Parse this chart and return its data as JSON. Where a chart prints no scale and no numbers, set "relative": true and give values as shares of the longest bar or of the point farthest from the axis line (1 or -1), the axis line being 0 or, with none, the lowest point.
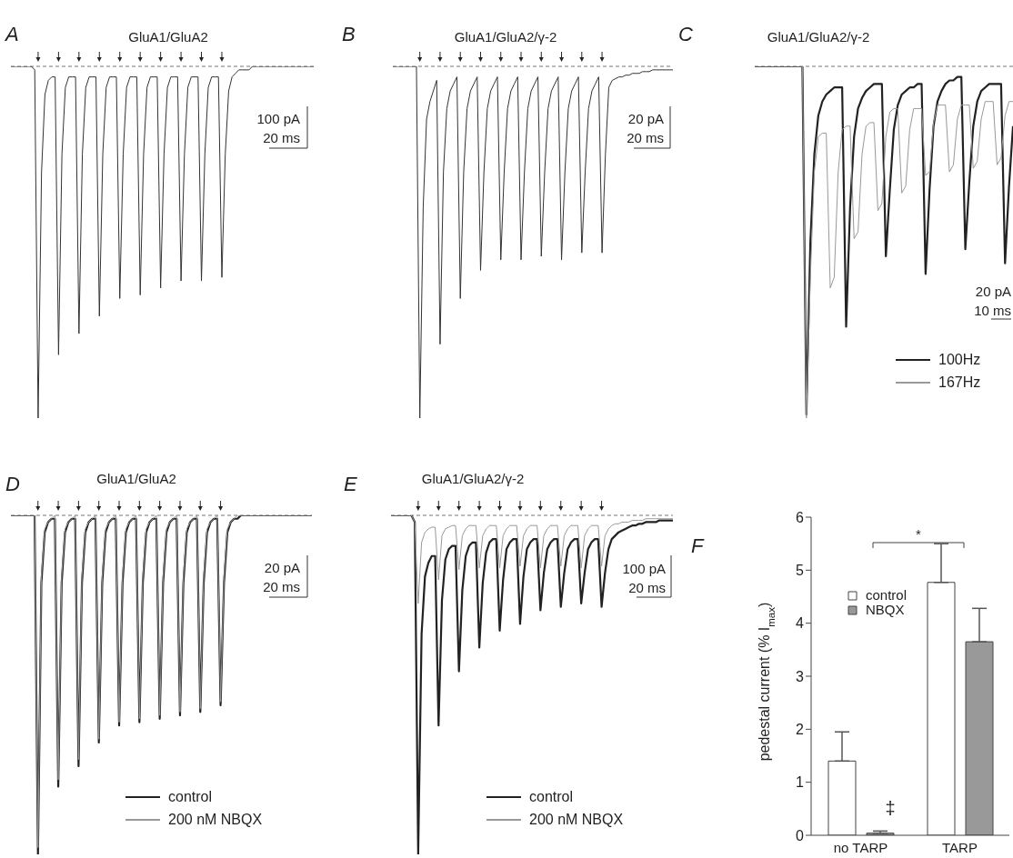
{
  "chart_data": [
    {
      "type": "line",
      "relative": true,
      "title": "GluA1/GluA2",
      "annotations": [
        "A",
        "100 pA",
        "20 ms"
      ],
      "ref_lines": [
        {
          "axis": "y",
          "value": 0,
          "line_style": "dashed",
          "color": "#777777"
        }
      ],
      "categories": [
        null,
        null,
        null,
        null,
        null,
        null,
        null,
        null,
        null,
        null,
        null,
        null,
        null,
        null,
        null,
        null,
        null,
        null,
        null,
        null,
        null,
        null,
        null,
        null,
        null,
        null,
        null,
        null,
        null,
        null,
        null,
        null,
        null,
        null,
        null,
        null,
        null,
        null,
        null,
        null,
        null,
        null,
        null,
        null,
        null,
        null,
        null,
        null,
        null,
        null,
        null,
        null,
        null,
        null,
        null,
        null,
        null,
        null,
        null,
        null,
        null,
        null,
        null,
        null,
        null,
        null,
        null,
        null,
        null,
        null,
        null,
        null,
        null,
        null,
        null,
        null,
        null,
        null,
        null,
        null,
        null,
        null,
        null,
        null,
        null,
        null,
        null,
        null,
        null,
        null
      ],
      "series": [
        {
          "color": "#333333",
          "values": [
            0,
            0,
            0,
            0,
            0,
            0,
            0,
            -0.01,
            -1,
            -0.3,
            -0.08,
            -0.04,
            -0.03,
            -0.03,
            -0.82,
            -0.25,
            -0.06,
            -0.03,
            -0.03,
            -0.03,
            -0.76,
            -0.25,
            -0.06,
            -0.03,
            -0.03,
            -0.03,
            -0.71,
            -0.25,
            -0.06,
            -0.03,
            -0.03,
            -0.03,
            -0.66,
            -0.25,
            -0.06,
            -0.03,
            -0.03,
            -0.03,
            -0.65,
            -0.25,
            -0.06,
            -0.03,
            -0.03,
            -0.03,
            -0.63,
            -0.25,
            -0.06,
            -0.03,
            -0.03,
            -0.03,
            -0.61,
            -0.25,
            -0.06,
            -0.03,
            -0.03,
            -0.03,
            -0.61,
            -0.25,
            -0.06,
            -0.03,
            -0.03,
            -0.03,
            -0.6,
            -0.25,
            -0.07,
            -0.03,
            -0.02,
            -0.01,
            -0.01,
            -0.01,
            -0.01,
            0,
            0,
            0,
            0,
            0,
            0,
            0,
            0,
            0,
            0,
            0,
            0,
            0,
            0,
            0,
            0,
            0,
            0,
            0
          ]
        }
      ]
    },
    {
      "type": "line",
      "relative": true,
      "title": "GluA1/GluA2/γ-2",
      "annotations": [
        "B",
        "20 pA",
        "20 ms"
      ],
      "ref_lines": [
        {
          "axis": "y",
          "value": 0,
          "line_style": "dashed",
          "color": "#777777"
        }
      ],
      "categories": [
        null,
        null,
        null,
        null,
        null,
        null,
        null,
        null,
        null,
        null,
        null,
        null,
        null,
        null,
        null,
        null,
        null,
        null,
        null,
        null,
        null,
        null,
        null,
        null,
        null,
        null,
        null,
        null,
        null,
        null,
        null,
        null,
        null,
        null,
        null,
        null,
        null,
        null,
        null,
        null,
        null,
        null,
        null,
        null,
        null,
        null,
        null,
        null,
        null,
        null,
        null,
        null,
        null,
        null,
        null,
        null,
        null,
        null,
        null,
        null,
        null,
        null,
        null,
        null,
        null,
        null,
        null,
        null,
        null,
        null,
        null,
        null,
        null,
        null,
        null,
        null,
        null,
        null,
        null,
        null,
        null,
        null,
        null,
        null
      ],
      "series": [
        {
          "color": "#333333",
          "values": [
            0,
            0,
            0,
            0,
            0,
            0,
            0,
            0,
            -1,
            -0.4,
            -0.15,
            -0.1,
            -0.07,
            -0.04,
            -0.79,
            -0.3,
            -0.12,
            -0.07,
            -0.05,
            -0.03,
            -0.66,
            -0.3,
            -0.12,
            -0.07,
            -0.05,
            -0.03,
            -0.58,
            -0.3,
            -0.12,
            -0.07,
            -0.05,
            -0.03,
            -0.55,
            -0.3,
            -0.12,
            -0.07,
            -0.05,
            -0.03,
            -0.55,
            -0.3,
            -0.12,
            -0.07,
            -0.05,
            -0.03,
            -0.54,
            -0.3,
            -0.12,
            -0.07,
            -0.05,
            -0.03,
            -0.55,
            -0.3,
            -0.12,
            -0.07,
            -0.05,
            -0.03,
            -0.53,
            -0.3,
            -0.12,
            -0.07,
            -0.05,
            -0.03,
            -0.53,
            -0.25,
            -0.06,
            -0.04,
            -0.035,
            -0.03,
            -0.03,
            -0.025,
            -0.025,
            -0.02,
            -0.02,
            -0.02,
            -0.015,
            -0.015,
            -0.015,
            -0.01,
            -0.01,
            -0.01,
            -0.01,
            -0.01,
            -0.01,
            -0.01
          ]
        }
      ]
    },
    {
      "type": "line",
      "relative": true,
      "title": "GluA1/GluA2/γ-2",
      "annotations": [
        "C",
        "20 pA",
        "10 ms"
      ],
      "legend": "bottom right",
      "ref_lines": [
        {
          "axis": "y",
          "value": 0,
          "line_style": "dashed",
          "color": "#777777"
        }
      ],
      "categories": [
        null,
        null,
        null,
        null,
        null,
        null,
        null,
        null,
        null,
        null,
        null,
        null,
        null,
        null,
        null,
        null,
        null,
        null,
        null,
        null,
        null,
        null,
        null,
        null,
        null,
        null,
        null,
        null,
        null,
        null,
        null,
        null,
        null,
        null,
        null,
        null,
        null,
        null,
        null,
        null,
        null,
        null,
        null,
        null,
        null,
        null,
        null,
        null,
        null,
        null,
        null,
        null,
        null,
        null,
        null,
        null,
        null,
        null,
        null,
        null,
        null,
        null,
        null,
        null,
        null,
        null
      ],
      "series": [
        {
          "name": "100Hz",
          "color": "#222222",
          "values": [
            0,
            0,
            0,
            0,
            0,
            0,
            0,
            0,
            0,
            0,
            0,
            0,
            0,
            -0.99,
            -0.5,
            -0.25,
            -0.14,
            -0.1,
            -0.08,
            -0.07,
            -0.06,
            -0.06,
            -0.06,
            -0.74,
            -0.4,
            -0.2,
            -0.12,
            -0.09,
            -0.07,
            -0.06,
            -0.05,
            -0.05,
            -0.05,
            -0.54,
            -0.35,
            -0.18,
            -0.11,
            -0.08,
            -0.07,
            -0.06,
            -0.06,
            -0.05,
            -0.05,
            -0.59,
            -0.35,
            -0.17,
            -0.1,
            -0.07,
            -0.05,
            -0.04,
            -0.04,
            -0.03,
            -0.03,
            -0.52,
            -0.33,
            -0.17,
            -0.1,
            -0.07,
            -0.06,
            -0.05,
            -0.05,
            -0.05,
            -0.05,
            -0.56,
            -0.34,
            -0.17
          ]
        },
        {
          "name": "167Hz",
          "color": "#999999",
          "values": [
            0,
            0,
            0,
            0,
            0,
            0,
            0,
            0,
            0,
            0,
            0,
            0,
            0,
            -1,
            -0.6,
            -0.3,
            -0.2,
            -0.19,
            -0.19,
            -0.63,
            -0.6,
            -0.3,
            -0.18,
            -0.17,
            -0.17,
            -0.49,
            -0.47,
            -0.25,
            -0.17,
            -0.16,
            -0.16,
            -0.41,
            -0.39,
            -0.2,
            -0.13,
            -0.12,
            -0.12,
            -0.36,
            -0.34,
            -0.18,
            -0.12,
            -0.12,
            -0.12,
            -0.31,
            -0.3,
            -0.16,
            -0.11,
            -0.11,
            -0.11,
            -0.3,
            -0.28,
            -0.15,
            -0.11,
            -0.11,
            -0.11,
            -0.29,
            -0.27,
            -0.15,
            -0.1,
            -0.1,
            -0.1,
            -0.28,
            -0.26,
            -0.14,
            -0.1,
            -0.1
          ]
        }
      ]
    },
    {
      "type": "line",
      "relative": true,
      "title": "GluA1/GluA2",
      "annotations": [
        "D",
        "20 pA",
        "20 ms"
      ],
      "legend": "bottom right",
      "ref_lines": [
        {
          "axis": "y",
          "value": 0,
          "line_style": "dashed",
          "color": "#777777"
        }
      ],
      "categories": [
        null,
        null,
        null,
        null,
        null,
        null,
        null,
        null,
        null,
        null,
        null,
        null,
        null,
        null,
        null,
        null,
        null,
        null,
        null,
        null,
        null,
        null,
        null,
        null,
        null,
        null,
        null,
        null,
        null,
        null,
        null,
        null,
        null,
        null,
        null,
        null,
        null,
        null,
        null,
        null,
        null,
        null,
        null,
        null,
        null,
        null,
        null,
        null,
        null,
        null,
        null,
        null,
        null,
        null,
        null,
        null,
        null,
        null,
        null,
        null,
        null,
        null,
        null,
        null,
        null,
        null,
        null,
        null,
        null,
        null,
        null,
        null,
        null,
        null,
        null,
        null,
        null,
        null,
        null,
        null,
        null,
        null,
        null,
        null,
        null,
        null,
        null,
        null,
        null,
        null
      ],
      "series": [
        {
          "name": "control",
          "color": "#222222",
          "values": [
            0,
            0,
            0,
            0,
            0,
            0,
            0,
            0,
            -1,
            -0.2,
            -0.05,
            -0.02,
            -0.01,
            -0.01,
            -0.8,
            -0.2,
            -0.05,
            -0.02,
            -0.01,
            -0.01,
            -0.74,
            -0.2,
            -0.05,
            -0.02,
            -0.01,
            -0.01,
            -0.67,
            -0.2,
            -0.05,
            -0.02,
            -0.01,
            -0.01,
            -0.62,
            -0.2,
            -0.05,
            -0.02,
            -0.01,
            -0.01,
            -0.61,
            -0.2,
            -0.05,
            -0.02,
            -0.01,
            -0.01,
            -0.6,
            -0.2,
            -0.05,
            -0.02,
            -0.01,
            -0.01,
            -0.59,
            -0.2,
            -0.05,
            -0.02,
            -0.01,
            -0.01,
            -0.58,
            -0.2,
            -0.05,
            -0.02,
            -0.01,
            -0.01,
            -0.56,
            -0.2,
            -0.05,
            -0.02,
            -0.01,
            -0.01,
            0,
            0,
            0,
            0,
            0,
            0,
            0,
            0,
            0,
            0,
            0,
            0,
            0,
            0,
            0,
            0,
            0,
            0,
            0,
            0,
            0,
            0
          ]
        },
        {
          "name": "200 nM NBQX",
          "color": "#999999",
          "values": [
            0,
            0,
            0,
            0,
            0,
            0,
            0,
            0,
            -0.98,
            -0.18,
            -0.04,
            -0.02,
            -0.01,
            0,
            -0.78,
            -0.18,
            -0.04,
            -0.02,
            -0.01,
            0,
            -0.72,
            -0.18,
            -0.04,
            -0.02,
            -0.01,
            0,
            -0.66,
            -0.18,
            -0.04,
            -0.02,
            -0.01,
            0,
            -0.61,
            -0.18,
            -0.04,
            -0.02,
            -0.01,
            0,
            -0.6,
            -0.18,
            -0.04,
            -0.02,
            -0.01,
            0,
            -0.59,
            -0.18,
            -0.04,
            -0.02,
            -0.01,
            0,
            -0.58,
            -0.18,
            -0.04,
            -0.02,
            -0.01,
            0,
            -0.57,
            -0.18,
            -0.04,
            -0.02,
            -0.01,
            0,
            -0.55,
            -0.18,
            -0.04,
            -0.02,
            -0.01,
            0,
            0,
            0,
            0,
            0,
            0,
            0,
            0,
            0,
            0,
            0,
            0,
            0,
            0,
            0,
            0,
            0,
            0,
            0,
            0,
            0,
            0,
            0
          ]
        }
      ]
    },
    {
      "type": "line",
      "relative": true,
      "title": "GluA1/GluA2/γ-2",
      "annotations": [
        "E",
        "100 pA",
        "20 ms"
      ],
      "legend": "bottom right",
      "ref_lines": [
        {
          "axis": "y",
          "value": 0,
          "line_style": "dashed",
          "color": "#777777"
        }
      ],
      "categories": [
        null,
        null,
        null,
        null,
        null,
        null,
        null,
        null,
        null,
        null,
        null,
        null,
        null,
        null,
        null,
        null,
        null,
        null,
        null,
        null,
        null,
        null,
        null,
        null,
        null,
        null,
        null,
        null,
        null,
        null,
        null,
        null,
        null,
        null,
        null,
        null,
        null,
        null,
        null,
        null,
        null,
        null,
        null,
        null,
        null,
        null,
        null,
        null,
        null,
        null,
        null,
        null,
        null,
        null,
        null,
        null,
        null,
        null,
        null,
        null,
        null,
        null,
        null,
        null,
        null,
        null,
        null,
        null,
        null,
        null,
        null,
        null,
        null,
        null,
        null,
        null,
        null,
        null,
        null,
        null,
        null,
        null,
        null,
        null
      ],
      "series": [
        {
          "name": "control",
          "color": "#222222",
          "values": [
            0,
            0,
            0,
            0,
            0,
            0,
            0,
            -0.02,
            -1,
            -0.35,
            -0.18,
            -0.14,
            -0.12,
            -0.12,
            -0.62,
            -0.25,
            -0.13,
            -0.1,
            -0.09,
            -0.09,
            -0.46,
            -0.22,
            -0.12,
            -0.09,
            -0.08,
            -0.08,
            -0.39,
            -0.2,
            -0.11,
            -0.08,
            -0.07,
            -0.07,
            -0.34,
            -0.19,
            -0.1,
            -0.08,
            -0.07,
            -0.07,
            -0.32,
            -0.18,
            -0.1,
            -0.08,
            -0.07,
            -0.07,
            -0.28,
            -0.17,
            -0.1,
            -0.08,
            -0.07,
            -0.07,
            -0.27,
            -0.17,
            -0.1,
            -0.08,
            -0.07,
            -0.07,
            -0.26,
            -0.17,
            -0.1,
            -0.08,
            -0.07,
            -0.07,
            -0.27,
            -0.17,
            -0.1,
            -0.07,
            -0.06,
            -0.05,
            -0.045,
            -0.04,
            -0.035,
            -0.03,
            -0.03,
            -0.025,
            -0.025,
            -0.02,
            -0.02,
            -0.02,
            -0.02,
            -0.015,
            -0.015,
            -0.015,
            -0.015,
            -0.015
          ]
        },
        {
          "name": "200 nM NBQX",
          "color": "#999999",
          "values": [
            0,
            0,
            0,
            0,
            0,
            0,
            0,
            -0.02,
            -0.26,
            -0.08,
            -0.05,
            -0.04,
            -0.035,
            -0.035,
            -0.19,
            -0.06,
            -0.04,
            -0.035,
            -0.03,
            -0.03,
            -0.16,
            -0.06,
            -0.04,
            -0.03,
            -0.03,
            -0.03,
            -0.155,
            -0.06,
            -0.04,
            -0.03,
            -0.03,
            -0.03,
            -0.155,
            -0.06,
            -0.04,
            -0.03,
            -0.03,
            -0.03,
            -0.15,
            -0.06,
            -0.04,
            -0.03,
            -0.03,
            -0.03,
            -0.155,
            -0.06,
            -0.04,
            -0.03,
            -0.03,
            -0.03,
            -0.15,
            -0.06,
            -0.04,
            -0.03,
            -0.03,
            -0.03,
            -0.155,
            -0.06,
            -0.04,
            -0.03,
            -0.03,
            -0.03,
            -0.15,
            -0.06,
            -0.04,
            -0.03,
            -0.025,
            -0.025,
            -0.02,
            -0.02,
            -0.02,
            -0.015,
            -0.015,
            -0.015,
            -0.015,
            -0.01,
            -0.01,
            -0.01,
            -0.01,
            -0.01,
            -0.01,
            -0.01,
            -0.01,
            -0.01
          ]
        }
      ]
    },
    {
      "type": "bar",
      "ylabel": "pedestal current (% I$_{max}$)",
      "annotations": [
        "F",
        "*",
        "‡"
      ],
      "legend": "top left",
      "categories": [
        "no TARP",
        "TARP"
      ],
      "ylim": [
        0,
        6
      ],
      "yticks": [
        0,
        1,
        2,
        3,
        4,
        5,
        6
      ],
      "series": [
        {
          "name": "control",
          "color": "#ffffff",
          "values": [
            1.4,
            4.77
          ],
          "errors": [
            [
              1.4,
              1.95
            ],
            [
              4.77,
              5.5
            ]
          ]
        },
        {
          "name": "NBQX",
          "color": "#999999",
          "values": [
            0.04,
            3.65
          ],
          "errors": [
            [
              0.04,
              0.08
            ],
            [
              3.65,
              4.28
            ]
          ]
        }
      ]
    }
  ]
}
